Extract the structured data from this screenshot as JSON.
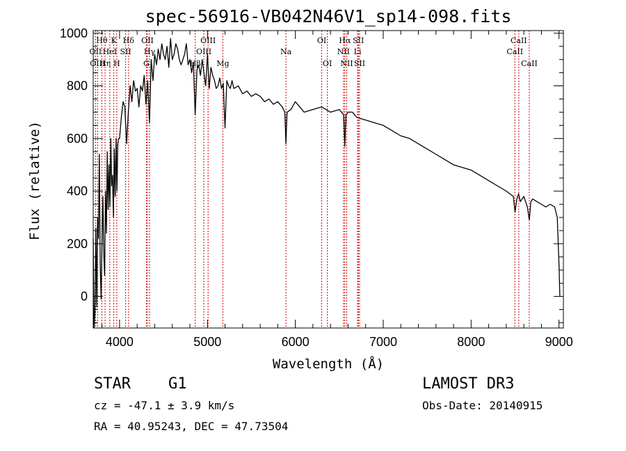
{
  "chart_data": {
    "type": "line",
    "title": "spec-56916-VB042N46V1_sp14-098.fits",
    "xlabel": "Wavelength (Å)",
    "ylabel": "Flux (relative)",
    "xlim": [
      3700,
      9050
    ],
    "ylim": [
      -120,
      1010
    ],
    "x_ticks": [
      4000,
      5000,
      6000,
      7000,
      8000,
      9000
    ],
    "y_ticks": [
      0,
      200,
      400,
      600,
      800,
      1000
    ],
    "series": [
      {
        "name": "spectrum",
        "x": [
          3700,
          3710,
          3720,
          3730,
          3740,
          3750,
          3760,
          3770,
          3780,
          3790,
          3800,
          3810,
          3820,
          3830,
          3840,
          3850,
          3860,
          3870,
          3880,
          3890,
          3900,
          3910,
          3920,
          3930,
          3940,
          3950,
          3960,
          3970,
          3980,
          3990,
          4000,
          4020,
          4040,
          4060,
          4080,
          4100,
          4120,
          4140,
          4160,
          4180,
          4200,
          4220,
          4240,
          4260,
          4280,
          4300,
          4320,
          4340,
          4360,
          4380,
          4400,
          4420,
          4440,
          4460,
          4480,
          4500,
          4520,
          4540,
          4560,
          4580,
          4600,
          4620,
          4640,
          4660,
          4680,
          4700,
          4720,
          4740,
          4760,
          4780,
          4800,
          4820,
          4840,
          4860,
          4880,
          4900,
          4920,
          4940,
          4960,
          4980,
          5000,
          5020,
          5040,
          5060,
          5080,
          5100,
          5120,
          5140,
          5160,
          5180,
          5200,
          5220,
          5240,
          5260,
          5280,
          5300,
          5350,
          5400,
          5450,
          5500,
          5550,
          5600,
          5650,
          5700,
          5750,
          5800,
          5850,
          5880,
          5893,
          5906,
          5950,
          6000,
          6100,
          6200,
          6300,
          6400,
          6500,
          6550,
          6563,
          6576,
          6600,
          6650,
          6700,
          6800,
          6900,
          7000,
          7100,
          7200,
          7300,
          7400,
          7500,
          7600,
          7700,
          7800,
          7900,
          8000,
          8100,
          8200,
          8300,
          8400,
          8480,
          8500,
          8520,
          8540,
          8560,
          8600,
          8640,
          8662,
          8680,
          8700,
          8750,
          8800,
          8850,
          8900,
          8950,
          8980,
          9000,
          9010
        ],
        "values": [
          220,
          -120,
          -60,
          260,
          -40,
          300,
          220,
          540,
          120,
          -10,
          200,
          380,
          160,
          80,
          400,
          240,
          550,
          330,
          500,
          340,
          600,
          420,
          460,
          300,
          560,
          380,
          600,
          400,
          580,
          600,
          600,
          680,
          740,
          720,
          580,
          700,
          800,
          740,
          820,
          780,
          790,
          720,
          800,
          780,
          840,
          730,
          820,
          660,
          900,
          820,
          920,
          880,
          940,
          900,
          960,
          920,
          900,
          950,
          870,
          980,
          900,
          920,
          960,
          940,
          900,
          880,
          900,
          920,
          960,
          880,
          900,
          850,
          890,
          690,
          860,
          880,
          840,
          900,
          850,
          800,
          920,
          790,
          870,
          840,
          820,
          790,
          800,
          830,
          790,
          810,
          640,
          820,
          800,
          790,
          820,
          790,
          800,
          770,
          780,
          760,
          770,
          760,
          740,
          750,
          730,
          740,
          720,
          700,
          580,
          700,
          710,
          740,
          700,
          710,
          720,
          700,
          710,
          690,
          570,
          690,
          700,
          700,
          680,
          670,
          660,
          650,
          630,
          610,
          600,
          580,
          560,
          540,
          520,
          500,
          490,
          480,
          460,
          440,
          420,
          400,
          380,
          320,
          370,
          390,
          360,
          380,
          340,
          290,
          360,
          370,
          360,
          350,
          340,
          350,
          340,
          300,
          120,
          0
        ]
      }
    ],
    "lines": [
      {
        "label": "Hθ",
        "wave": 3798,
        "row": 1
      },
      {
        "label": "OII",
        "wave": 3727,
        "row": 2
      },
      {
        "label": "OIII",
        "wave": 3750,
        "row": 3
      },
      {
        "label": "Hη",
        "wave": 3835,
        "row": 3
      },
      {
        "label": "K",
        "wave": 3934,
        "row": 1
      },
      {
        "label": "HeI",
        "wave": 3889,
        "row": 2
      },
      {
        "label": "H",
        "wave": 3968,
        "row": 3
      },
      {
        "label": "Hδ",
        "wave": 4102,
        "row": 1
      },
      {
        "label": "SII",
        "wave": 4069,
        "row": 2
      },
      {
        "label": "OII",
        "wave": 4317,
        "row": 1
      },
      {
        "label": "Hγ",
        "wave": 4341,
        "row": 2
      },
      {
        "label": "G",
        "wave": 4305,
        "row": 3
      },
      {
        "label": "OIII",
        "wave": 5007,
        "row": 1
      },
      {
        "label": "OIII",
        "wave": 4959,
        "row": 2
      },
      {
        "label": "Hβ",
        "wave": 4861,
        "row": 3
      },
      {
        "label": "Mg",
        "wave": 5175,
        "row": 3
      },
      {
        "label": "Na",
        "wave": 5893,
        "row": 2
      },
      {
        "label": "OI",
        "wave": 6300,
        "row": 1
      },
      {
        "label": "OI",
        "wave": 6364,
        "row": 3
      },
      {
        "label": "Hα",
        "wave": 6563,
        "row": 1
      },
      {
        "label": "NII",
        "wave": 6548,
        "row": 2
      },
      {
        "label": "NII",
        "wave": 6584,
        "row": 3
      },
      {
        "label": "SII",
        "wave": 6717,
        "row": 1
      },
      {
        "label": "Li",
        "wave": 6708,
        "row": 2
      },
      {
        "label": "SII",
        "wave": 6731,
        "row": 3
      },
      {
        "label": "CaII",
        "wave": 8542,
        "row": 1
      },
      {
        "label": "CaII",
        "wave": 8498,
        "row": 2
      },
      {
        "label": "CaII",
        "wave": 8662,
        "row": 3
      }
    ]
  },
  "info": {
    "object_class": "STAR",
    "subclass": "G1",
    "survey": "LAMOST DR3",
    "redshift": "cz = -47.1 ± 3.9 km/s",
    "obs_date": "Obs-Date: 20140915",
    "coords": "RA =  40.95243, DEC =  47.73504"
  },
  "colors": {
    "axis": "#000000",
    "spectrum": "#000000",
    "line_marker": "#cc0000"
  }
}
